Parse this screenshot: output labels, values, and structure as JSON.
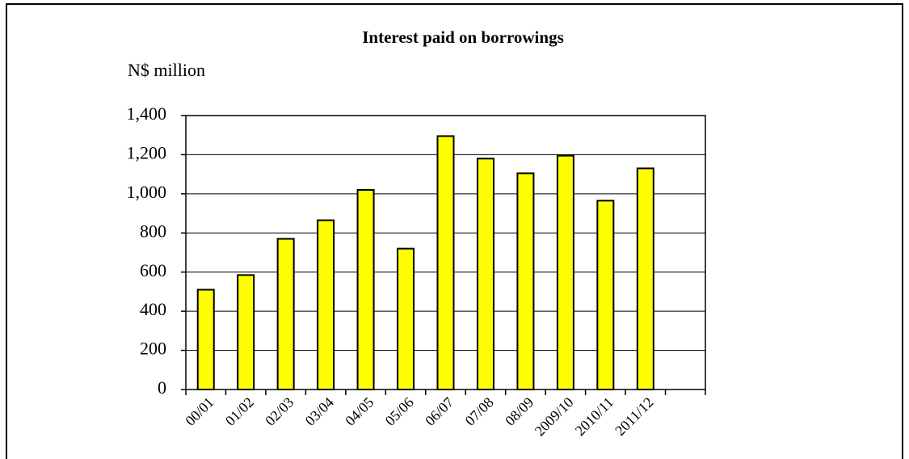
{
  "chart_data": {
    "type": "bar",
    "title": "Interest paid on borrowings",
    "y_axis_label": "N$ million",
    "categories": [
      "00/01",
      "01/02",
      "02/03",
      "03/04",
      "04/05",
      "05/06",
      "06/07",
      "07/08",
      "08/09",
      "2009/10",
      "2010/11",
      "2011/12",
      null
    ],
    "values": [
      510,
      585,
      770,
      865,
      1020,
      720,
      1295,
      1180,
      1105,
      1195,
      965,
      1130,
      null
    ],
    "color": "#ffff00",
    "ylim": [
      0,
      1400
    ],
    "yticks": [
      0,
      200,
      400,
      600,
      800,
      {
        "value": 1000,
        "label": "1,000"
      },
      {
        "value": 1200,
        "label": "1,200"
      },
      {
        "value": 1400,
        "label": "1,400"
      }
    ],
    "grid": true
  }
}
